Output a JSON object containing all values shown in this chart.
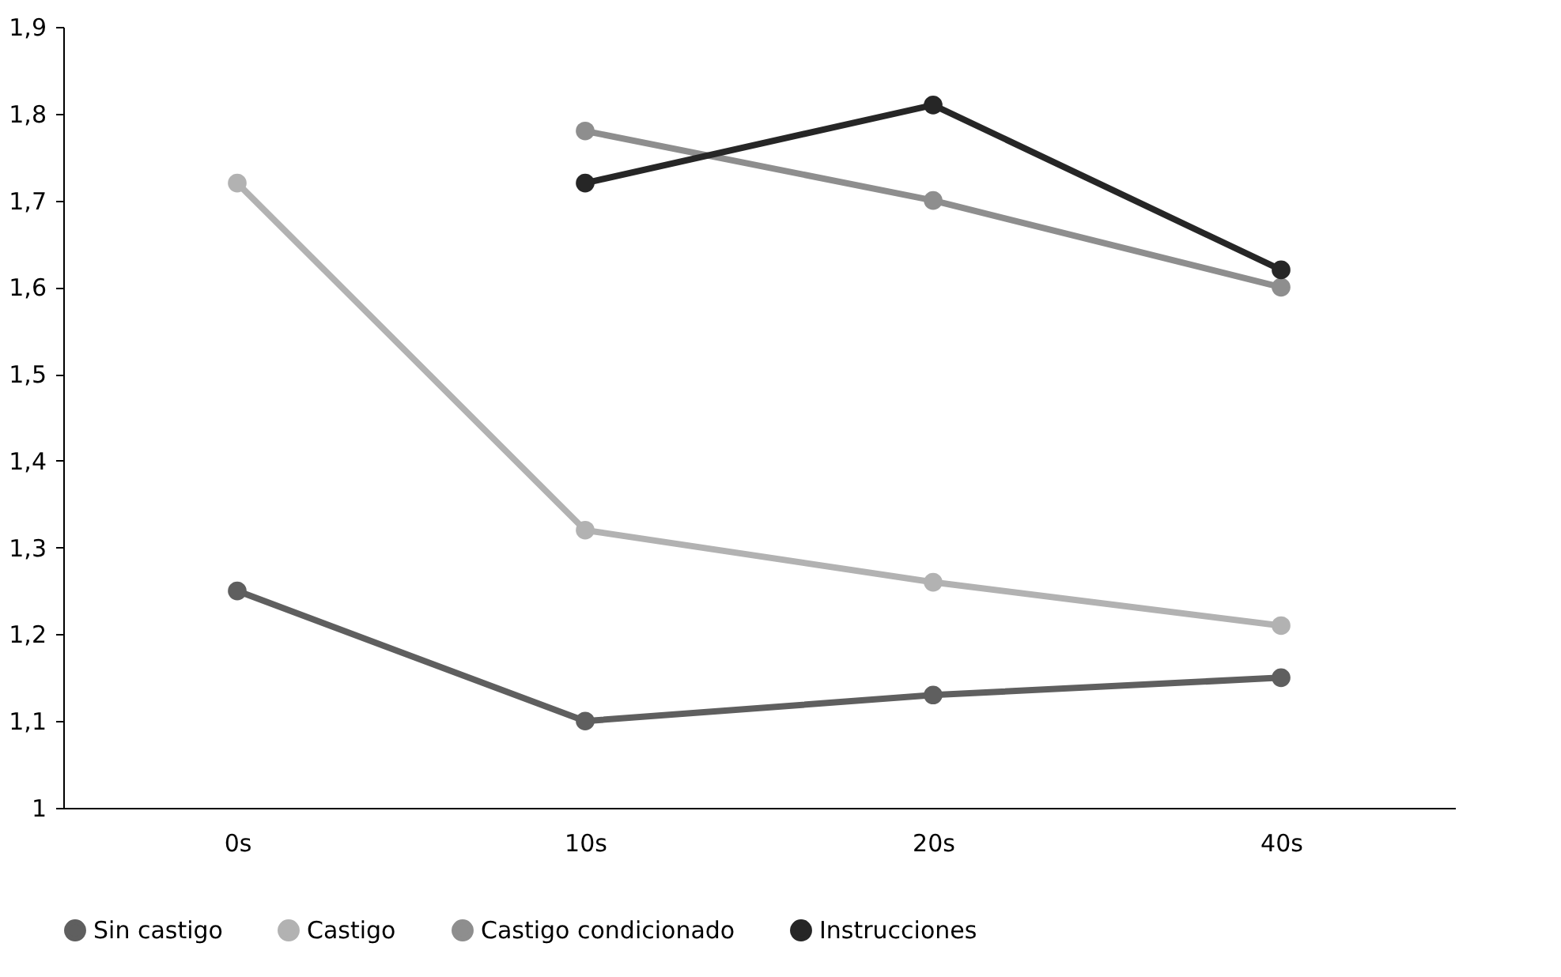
{
  "chart_data": {
    "type": "line",
    "categories": [
      "0s",
      "10s",
      "20s",
      "40s"
    ],
    "series": [
      {
        "name": "Sin castigo",
        "color": "#5f5f5f",
        "values": [
          1.25,
          1.1,
          1.13,
          1.15
        ]
      },
      {
        "name": "Castigo",
        "color": "#b2b2b2",
        "values": [
          1.72,
          1.32,
          1.26,
          1.21
        ]
      },
      {
        "name": "Castigo condicionado",
        "color": "#8e8e8e",
        "values": [
          null,
          1.78,
          1.7,
          1.6
        ]
      },
      {
        "name": "Instrucciones",
        "color": "#262626",
        "values": [
          null,
          1.72,
          1.81,
          1.62
        ]
      }
    ],
    "ylim": [
      1,
      1.9
    ],
    "yticks": [
      1,
      {
        "value": 1.1,
        "label": "1,1"
      },
      {
        "value": 1.2,
        "label": "1,2"
      },
      {
        "value": 1.3,
        "label": "1,3"
      },
      {
        "value": 1.4,
        "label": "1,4"
      },
      {
        "value": 1.5,
        "label": "1,5"
      },
      {
        "value": 1.6,
        "label": "1,6"
      },
      {
        "value": 1.7,
        "label": "1,7"
      },
      {
        "value": 1.8,
        "label": "1,8"
      },
      {
        "value": 1.9,
        "label": "1,9"
      }
    ],
    "grid": false,
    "legend": "bottom",
    "marker": "circle",
    "line_style": "solid"
  }
}
